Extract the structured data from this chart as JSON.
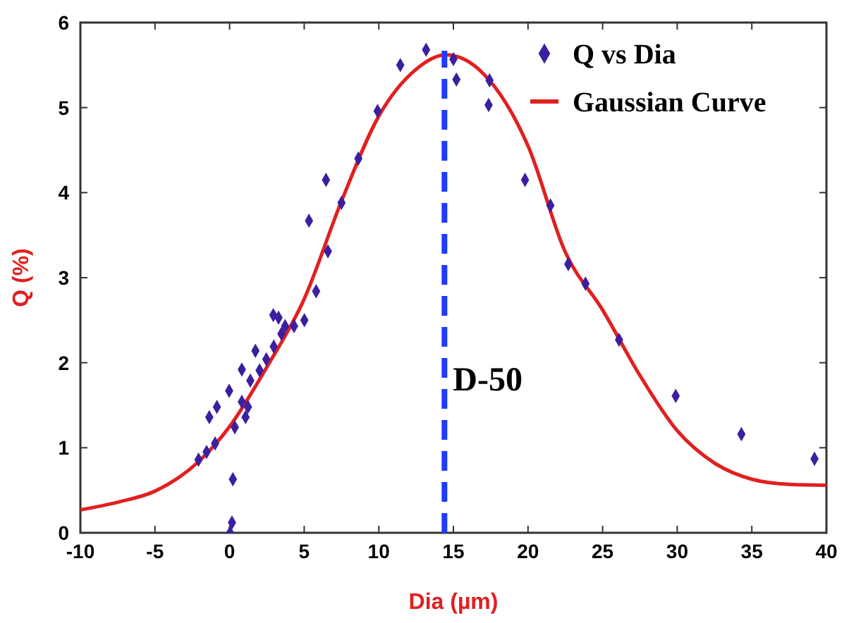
{
  "chart_data": {
    "type": "scatter",
    "xlabel": "Dia (µm)",
    "ylabel": "Q (%)",
    "xlim": [
      -10,
      40
    ],
    "ylim": [
      0,
      6
    ],
    "xticks": [
      -10,
      -5,
      0,
      5,
      10,
      15,
      20,
      25,
      30,
      35,
      40
    ],
    "yticks": [
      0,
      1,
      2,
      3,
      4,
      5,
      6
    ],
    "grid": false,
    "legend": "top right",
    "series": [
      {
        "name": "Q vs Dia",
        "marker": "diamond",
        "color": "#3b1fa0",
        "x": [
          -2.08,
          -1.54,
          -0.97,
          -1.36,
          -0.85,
          -0.03,
          0.82,
          0.82,
          0.35,
          1.07,
          1.23,
          1.39,
          1.73,
          2.01,
          2.46,
          2.96,
          2.93,
          3.28,
          3.47,
          3.72,
          4.32,
          5.01,
          5.8,
          0.22,
          0.16,
          0.03,
          5.32,
          6.46,
          6.59,
          7.5,
          8.63,
          9.92,
          11.44,
          13.17,
          15.0,
          15.2,
          17.42,
          17.36,
          19.8,
          21.5,
          22.7,
          23.85,
          26.1,
          29.9,
          34.3,
          39.2
        ],
        "values": [
          0.86,
          0.95,
          1.05,
          1.36,
          1.48,
          1.67,
          1.92,
          1.54,
          1.24,
          1.36,
          1.48,
          1.79,
          2.14,
          1.91,
          2.04,
          2.19,
          2.56,
          2.53,
          2.34,
          2.43,
          2.43,
          2.5,
          2.84,
          0.63,
          0.12,
          0.0,
          3.67,
          4.15,
          3.31,
          3.88,
          4.4,
          4.96,
          5.5,
          5.68,
          5.57,
          5.33,
          5.32,
          5.03,
          4.15,
          3.85,
          3.16,
          2.93,
          2.27,
          1.61,
          1.16,
          0.87
        ]
      },
      {
        "name": "Gaussian Curve",
        "type": "line",
        "marker": "none",
        "color": "#e02020",
        "x": [
          -10,
          -7.5,
          -5,
          -2,
          0,
          2.5,
          5,
          7.5,
          10,
          12.5,
          14.5,
          17,
          20,
          22.5,
          25,
          27.5,
          30,
          32.5,
          35,
          37.5,
          40
        ],
        "values": [
          0.27,
          0.36,
          0.49,
          0.85,
          1.25,
          1.95,
          2.75,
          3.9,
          4.9,
          5.45,
          5.62,
          5.4,
          4.55,
          3.3,
          2.62,
          1.85,
          1.2,
          0.82,
          0.63,
          0.57,
          0.56
        ]
      }
    ],
    "ref_lines": [
      {
        "axis": "x",
        "value": 14.4,
        "label": "D-50",
        "color": "#1f3bff",
        "line_style": "dashed"
      }
    ]
  }
}
